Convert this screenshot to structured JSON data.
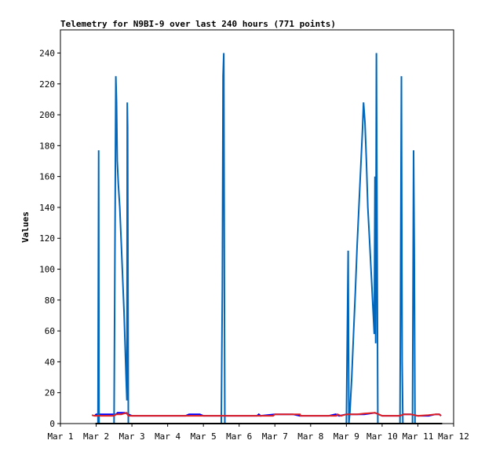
{
  "chart_data": {
    "type": "line",
    "title": "Telemetry for N9BI-9 over last 240 hours (771 points)",
    "ylabel": "Values",
    "xlabel": "",
    "x_ticks": [
      "Mar 1",
      "Mar 2",
      "Mar 3",
      "Mar 4",
      "Mar 5",
      "Mar 6",
      "Mar 7",
      "Mar 8",
      "Mar 9",
      "Mar 10",
      "Mar 11",
      "Mar 12"
    ],
    "y_ticks": [
      "0",
      "20",
      "40",
      "60",
      "80",
      "100",
      "120",
      "140",
      "160",
      "180",
      "200",
      "220",
      "240"
    ],
    "xlim": [
      1.0,
      12.0
    ],
    "ylim": [
      0,
      255
    ],
    "grid": false,
    "series": [
      {
        "color": "#0000ff",
        "points": [
          [
            1.96,
            5
          ],
          [
            2.0,
            6
          ],
          [
            2.1,
            6
          ],
          [
            2.2,
            6
          ],
          [
            2.3,
            6
          ],
          [
            2.4,
            6
          ],
          [
            2.5,
            6
          ],
          [
            2.56,
            6
          ],
          [
            2.6,
            7
          ],
          [
            2.7,
            7
          ],
          [
            2.8,
            7
          ],
          [
            2.9,
            6
          ],
          [
            3.0,
            5
          ],
          [
            3.5,
            5
          ],
          [
            4.0,
            5
          ],
          [
            4.5,
            5
          ],
          [
            4.6,
            6
          ],
          [
            4.7,
            6
          ],
          [
            4.8,
            6
          ],
          [
            4.9,
            6
          ],
          [
            5.0,
            5
          ],
          [
            5.5,
            5
          ],
          [
            6.0,
            5
          ],
          [
            6.5,
            5
          ],
          [
            6.55,
            6
          ],
          [
            6.6,
            5
          ],
          [
            7.0,
            6
          ],
          [
            7.5,
            6
          ],
          [
            7.7,
            5
          ],
          [
            8.0,
            5
          ],
          [
            8.5,
            5
          ],
          [
            8.7,
            6
          ],
          [
            8.8,
            5
          ],
          [
            9.0,
            6
          ],
          [
            9.3,
            6
          ],
          [
            9.5,
            6
          ],
          [
            9.8,
            7
          ],
          [
            9.9,
            6
          ],
          [
            10.0,
            5
          ],
          [
            10.5,
            5
          ],
          [
            10.6,
            6
          ],
          [
            10.8,
            6
          ],
          [
            11.0,
            5
          ],
          [
            11.3,
            5
          ],
          [
            11.5,
            6
          ],
          [
            11.6,
            6
          ],
          [
            11.65,
            5
          ]
        ]
      },
      {
        "color": "#0066bb",
        "points": [
          [
            2.0,
            0
          ],
          [
            2.05,
            0
          ],
          [
            2.07,
            177
          ],
          [
            2.08,
            0
          ],
          [
            2.5,
            0
          ],
          [
            2.55,
            225
          ],
          [
            2.57,
            208
          ],
          [
            2.59,
            170
          ],
          [
            2.62,
            155
          ],
          [
            2.66,
            140
          ],
          [
            2.7,
            118
          ],
          [
            2.74,
            95
          ],
          [
            2.78,
            72
          ],
          [
            2.81,
            50
          ],
          [
            2.84,
            28
          ],
          [
            2.86,
            15
          ],
          [
            2.87,
            208
          ],
          [
            2.88,
            192
          ],
          [
            2.9,
            0
          ],
          [
            5.5,
            0
          ],
          [
            5.53,
            88
          ],
          [
            5.55,
            225
          ],
          [
            5.57,
            240
          ],
          [
            5.59,
            65
          ],
          [
            5.6,
            0
          ],
          [
            9.0,
            0
          ],
          [
            9.05,
            112
          ],
          [
            9.07,
            0
          ],
          [
            9.1,
            8
          ],
          [
            9.15,
            30
          ],
          [
            9.2,
            58
          ],
          [
            9.25,
            85
          ],
          [
            9.3,
            115
          ],
          [
            9.35,
            140
          ],
          [
            9.4,
            165
          ],
          [
            9.45,
            190
          ],
          [
            9.48,
            208
          ],
          [
            9.52,
            195
          ],
          [
            9.56,
            170
          ],
          [
            9.6,
            140
          ],
          [
            9.65,
            118
          ],
          [
            9.7,
            95
          ],
          [
            9.75,
            72
          ],
          [
            9.78,
            58
          ],
          [
            9.8,
            160
          ],
          [
            9.82,
            52
          ],
          [
            9.84,
            240
          ],
          [
            9.86,
            120
          ],
          [
            9.88,
            0
          ],
          [
            10.5,
            0
          ],
          [
            10.54,
            225
          ],
          [
            10.56,
            40
          ],
          [
            10.58,
            0
          ],
          [
            10.85,
            0
          ],
          [
            10.88,
            177
          ],
          [
            10.9,
            112
          ],
          [
            10.92,
            0
          ],
          [
            11.6,
            0
          ]
        ]
      },
      {
        "color": "#e02020",
        "points": [
          [
            1.88,
            5.5
          ],
          [
            1.95,
            5
          ],
          [
            2.1,
            5
          ],
          [
            2.3,
            5
          ],
          [
            2.5,
            5
          ],
          [
            2.56,
            6
          ],
          [
            2.7,
            6
          ],
          [
            2.85,
            7
          ],
          [
            2.9,
            5
          ],
          [
            3.5,
            5
          ],
          [
            4.0,
            5
          ],
          [
            4.5,
            5
          ],
          [
            5.0,
            5
          ],
          [
            5.5,
            5
          ],
          [
            6.0,
            5
          ],
          [
            6.5,
            5
          ],
          [
            6.95,
            5
          ],
          [
            7.0,
            6
          ],
          [
            7.5,
            6
          ],
          [
            7.7,
            6
          ],
          [
            7.72,
            5
          ],
          [
            8.0,
            5
          ],
          [
            8.5,
            5
          ],
          [
            8.72,
            5
          ],
          [
            8.75,
            6
          ],
          [
            8.85,
            5
          ],
          [
            9.0,
            6
          ],
          [
            9.3,
            6
          ],
          [
            9.5,
            6.5
          ],
          [
            9.8,
            7
          ],
          [
            9.9,
            6
          ],
          [
            10.0,
            5
          ],
          [
            10.5,
            5
          ],
          [
            10.6,
            6
          ],
          [
            10.8,
            6
          ],
          [
            11.0,
            5
          ],
          [
            11.3,
            5.5
          ],
          [
            11.5,
            6
          ],
          [
            11.6,
            6
          ],
          [
            11.65,
            5
          ]
        ]
      },
      {
        "color": "#000000",
        "points": [
          [
            1.98,
            0
          ],
          [
            11.68,
            0
          ]
        ]
      }
    ]
  }
}
